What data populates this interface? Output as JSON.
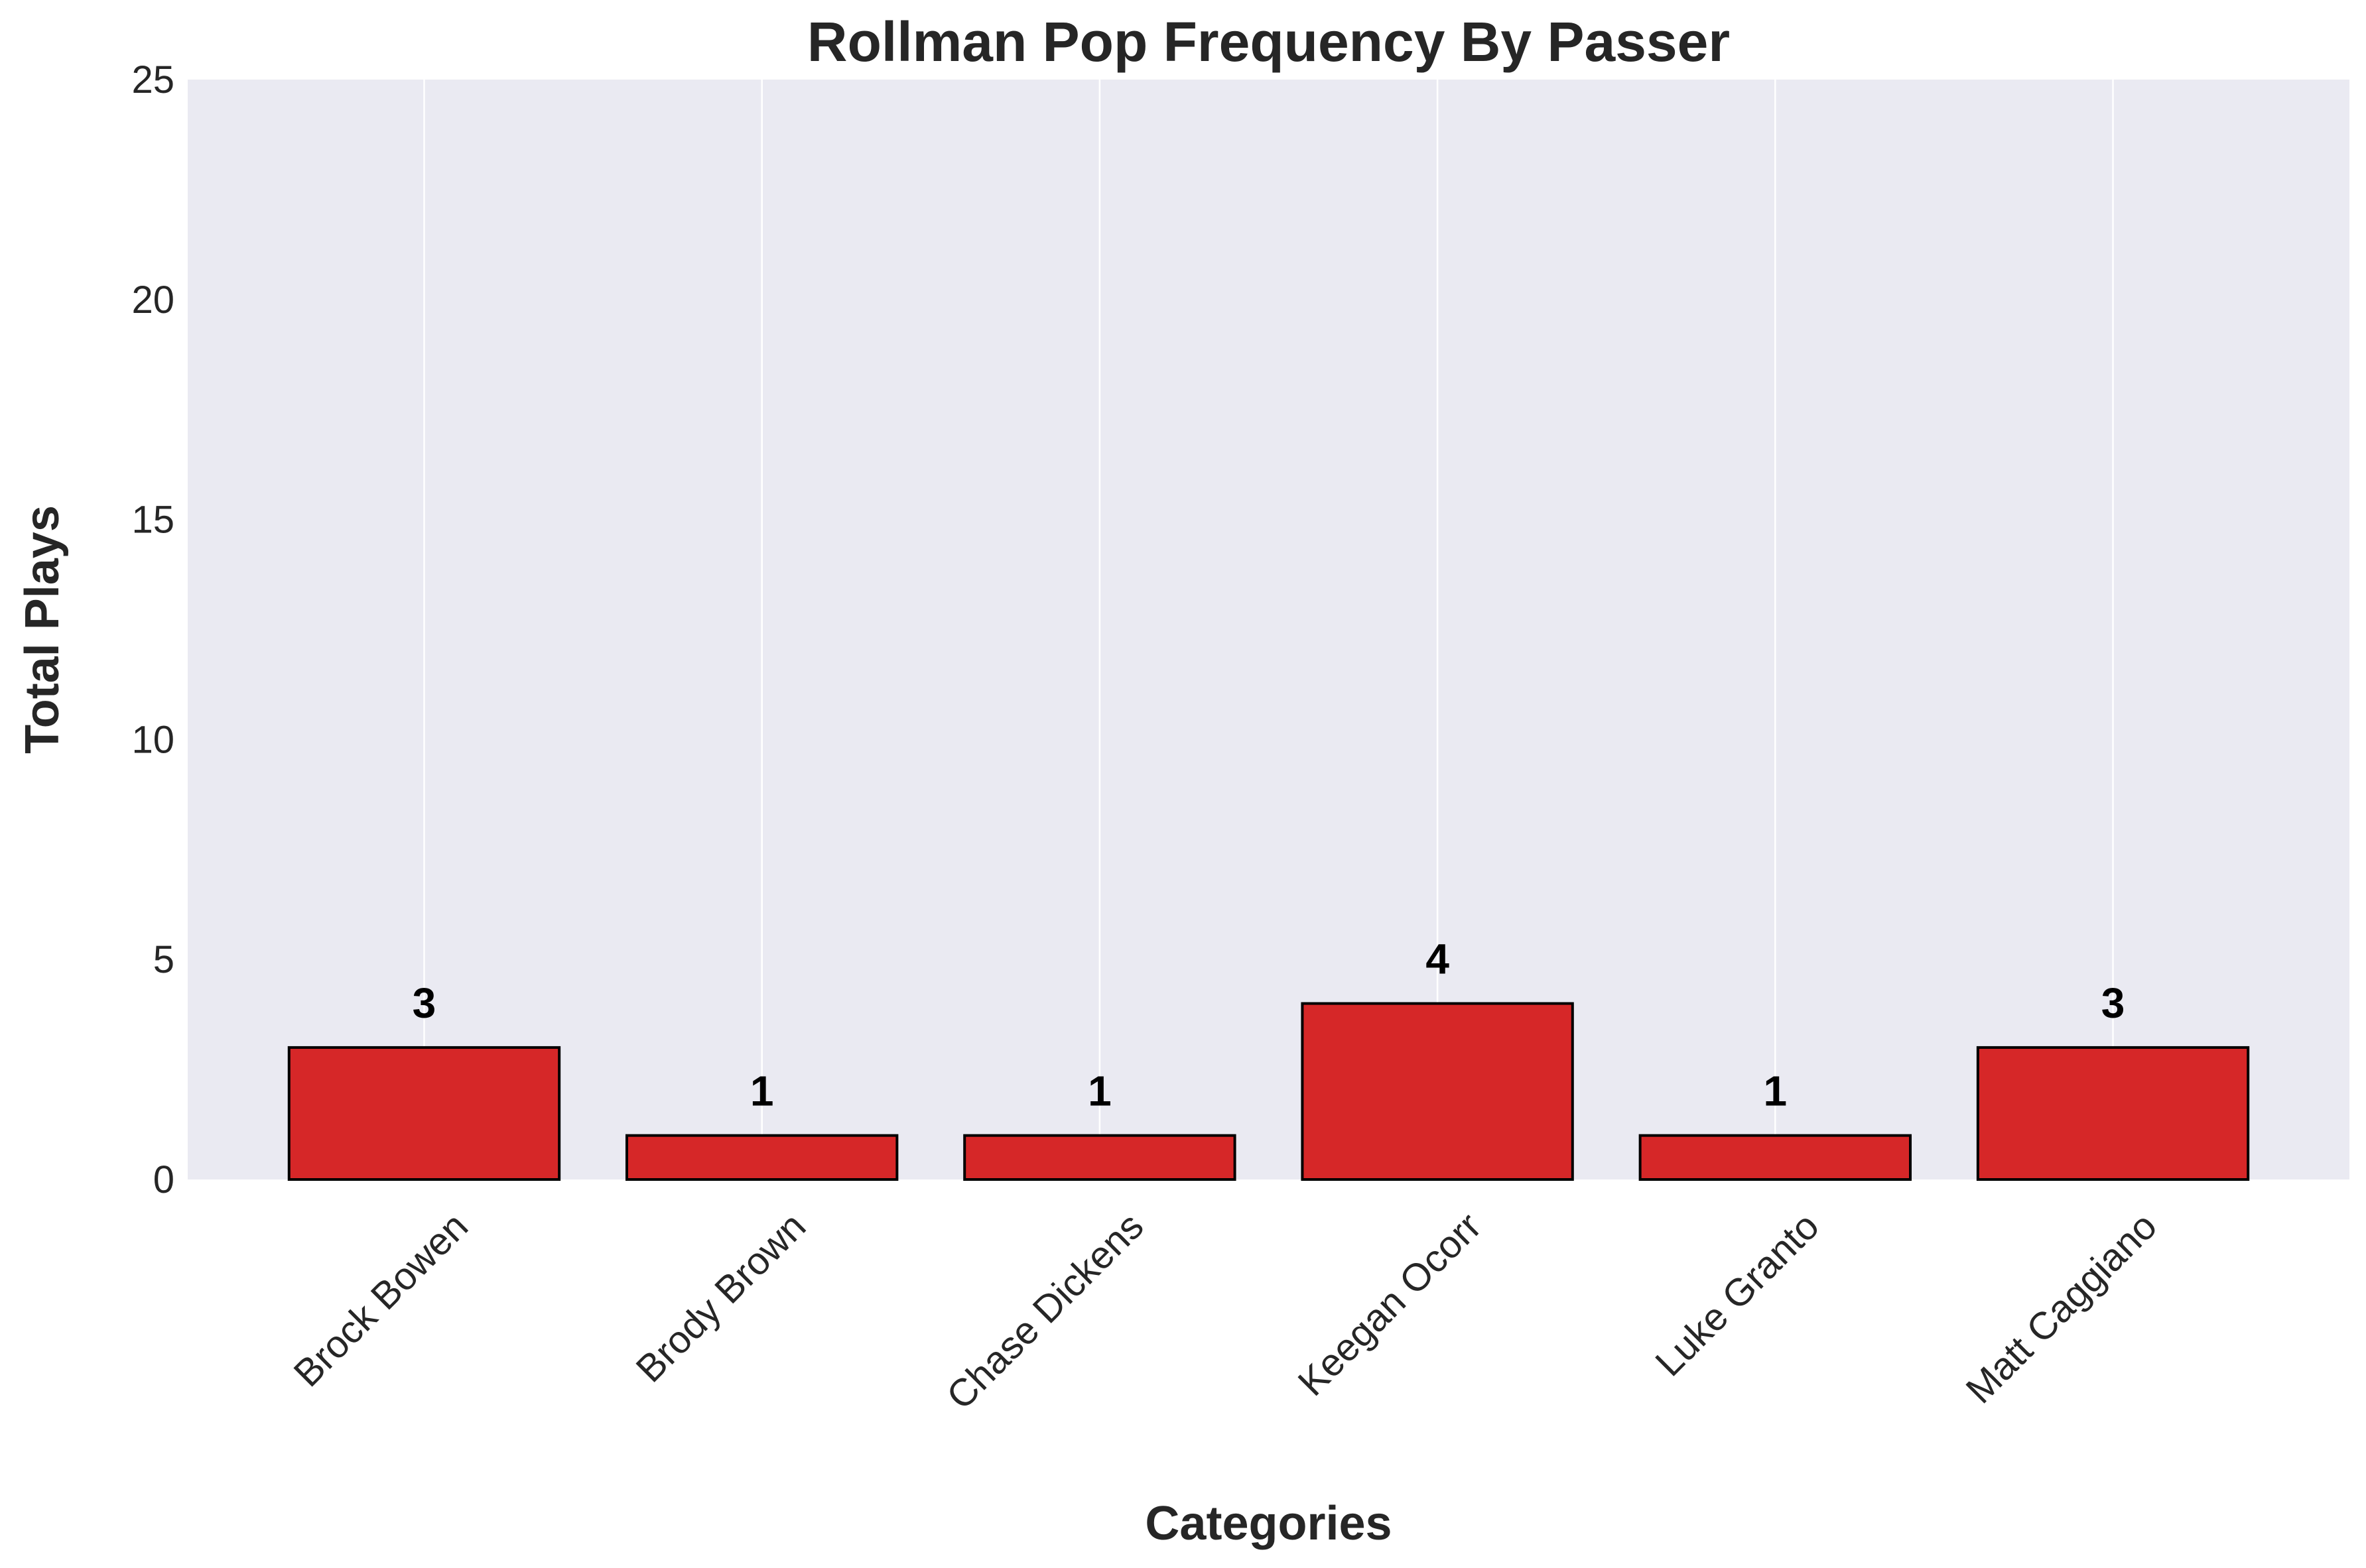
{
  "chart_data": {
    "type": "bar",
    "title": "Rollman Pop Frequency By Passer",
    "xlabel": "Categories",
    "ylabel": "Total Plays",
    "categories": [
      "Brock Bowen",
      "Brody Brown",
      "Chase Dickens",
      "Keegan Ocorr",
      "Luke Granto",
      "Matt Caggiano"
    ],
    "values": [
      3,
      1,
      1,
      4,
      1,
      3
    ],
    "data_labels": [
      "3",
      "1",
      "1",
      "4",
      "1",
      "3"
    ],
    "ylim": [
      0,
      25
    ],
    "yticks": [
      0,
      5,
      10,
      15,
      20,
      25
    ],
    "ytick_labels": [
      "0",
      "5",
      "10",
      "15",
      "20",
      "25"
    ],
    "bar_color": "#d62728",
    "bar_edge_color": "#000000",
    "background_color": "#eaeaf2",
    "grid": "vertical",
    "xtick_rotation_deg": 45
  }
}
